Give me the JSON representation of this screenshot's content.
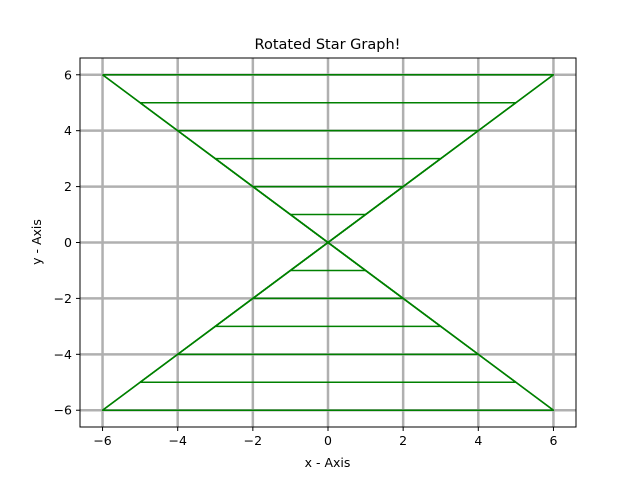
{
  "chart_data": {
    "type": "line",
    "title": "Rotated Star Graph!",
    "xlabel": "x - Axis",
    "ylabel": "y - Axis",
    "xlim": [
      -6.6,
      6.6
    ],
    "ylim": [
      -6.6,
      6.6
    ],
    "xticks": [
      -6,
      -4,
      -2,
      0,
      2,
      4,
      6
    ],
    "yticks": [
      -6,
      -4,
      -2,
      0,
      2,
      4,
      6
    ],
    "xtick_labels": [
      "−6",
      "−4",
      "−2",
      "0",
      "2",
      "4",
      "6"
    ],
    "ytick_labels": [
      "−6",
      "−4",
      "−2",
      "0",
      "2",
      "4",
      "6"
    ],
    "grid": true,
    "grid_color": "#b0b0b0",
    "line_color": "#008000",
    "series": [
      {
        "x": [
          -6,
          6,
          -6,
          6,
          -6
        ],
        "y": [
          6,
          6,
          -6,
          -6,
          6
        ]
      },
      {
        "x": [
          -5,
          5,
          -5,
          5,
          -5
        ],
        "y": [
          5,
          5,
          -5,
          -5,
          5
        ]
      },
      {
        "x": [
          -4,
          4,
          -4,
          4,
          -4
        ],
        "y": [
          4,
          4,
          -4,
          -4,
          4
        ]
      },
      {
        "x": [
          -3,
          3,
          -3,
          3,
          -3
        ],
        "y": [
          3,
          3,
          -3,
          -3,
          3
        ]
      },
      {
        "x": [
          -2,
          2,
          -2,
          2,
          -2
        ],
        "y": [
          2,
          2,
          -2,
          -2,
          2
        ]
      },
      {
        "x": [
          -1,
          1,
          -1,
          1,
          -1
        ],
        "y": [
          1,
          1,
          -1,
          -1,
          1
        ]
      },
      {
        "x": [
          -6,
          -5,
          -4,
          -3,
          -2,
          -1,
          1,
          2,
          3,
          4,
          5,
          6
        ],
        "y": [
          6,
          5,
          4,
          3,
          2,
          1,
          -1,
          -2,
          -3,
          -4,
          -5,
          -6
        ]
      },
      {
        "x": [
          -6,
          -5,
          -4,
          -3,
          -2,
          -1,
          1,
          2,
          3,
          4,
          5,
          6
        ],
        "y": [
          -6,
          -5,
          -4,
          -3,
          -2,
          -1,
          1,
          2,
          3,
          4,
          5,
          6
        ]
      }
    ]
  }
}
